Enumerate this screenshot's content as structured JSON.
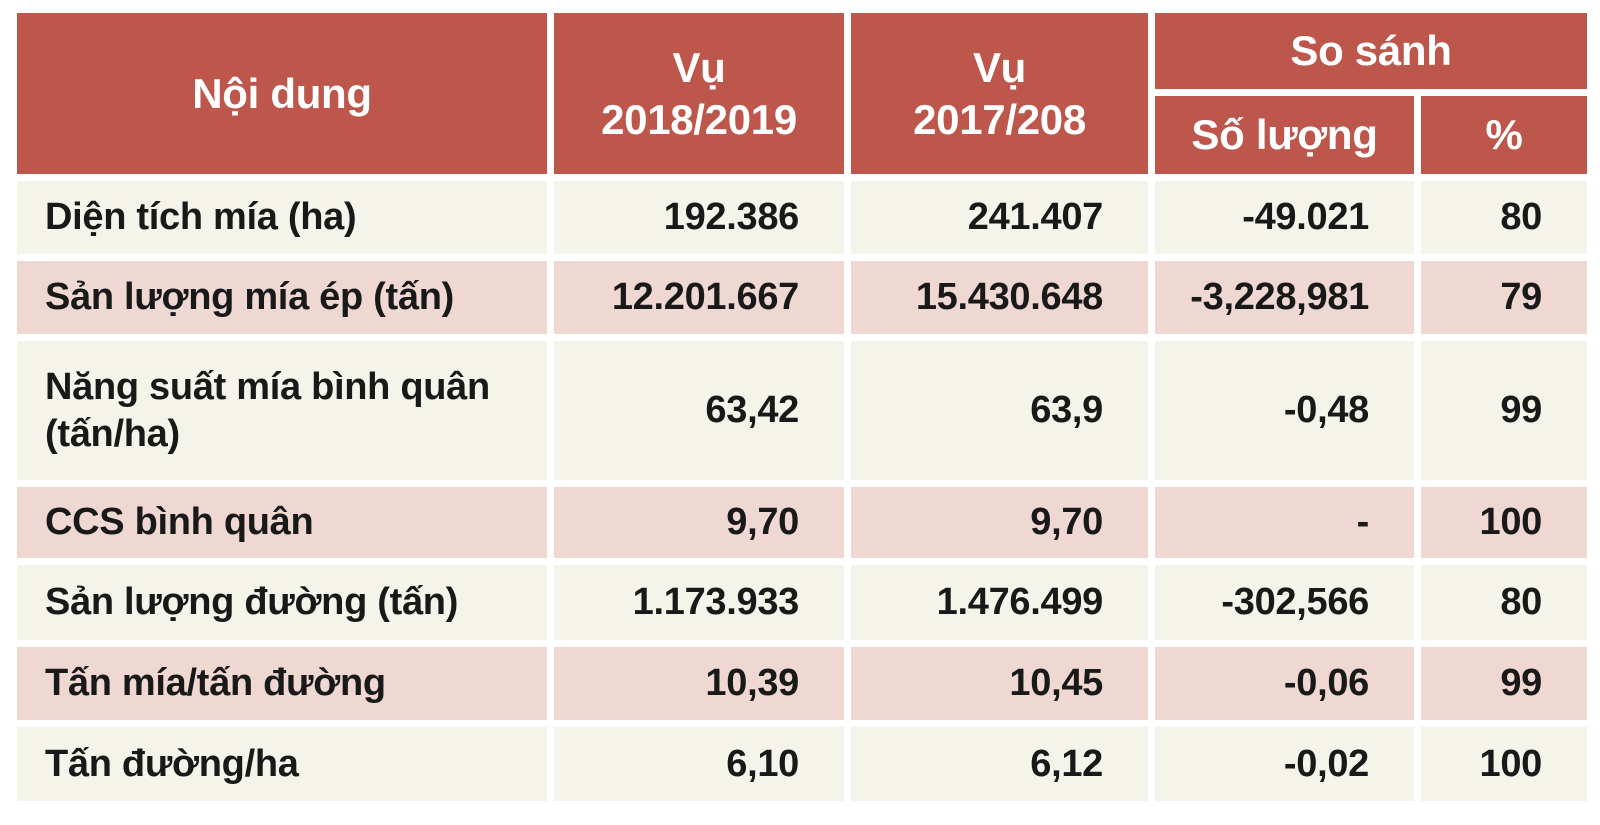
{
  "chart_data": {
    "type": "table",
    "header": {
      "content": "Nội dung",
      "season_2018_2019": "Vụ\n2018/2019",
      "season_2017_208": "Vụ\n2017/208",
      "comparison": "So sánh",
      "quantity": "Số lượng",
      "percent": "%"
    },
    "rows": [
      [
        "Diện tích mía (ha)",
        "192.386",
        "241.407",
        "-49.021",
        "80"
      ],
      [
        "Sản lượng mía ép (tấn)",
        "12.201.667",
        "15.430.648",
        "-3,228,981",
        "79"
      ],
      [
        "Năng suất mía bình quân\n(tấn/ha)",
        "63,42",
        "63,9",
        "-0,48",
        "99"
      ],
      [
        "CCS bình quân",
        "9,70",
        "9,70",
        "-",
        "100"
      ],
      [
        "Sản lượng đường (tấn)",
        "1.173.933",
        "1.476.499",
        "-302,566",
        "80"
      ],
      [
        "Tấn mía/tấn đường",
        "10,39",
        "10,45",
        "-0,06",
        "99"
      ],
      [
        "Tấn đường/ha",
        "6,10",
        "6,12",
        "-0,02",
        "100"
      ]
    ],
    "colors": {
      "header_bg": "#bd574c",
      "header_text": "#ffffff",
      "row_cream_bg": "#f4f4ea",
      "row_pink_bg": "#f0d8d2",
      "body_text": "#191919",
      "grid_gap": "#ffffff"
    },
    "layout": {
      "grid": "off",
      "row_striping": "cream/pink alternating"
    }
  }
}
